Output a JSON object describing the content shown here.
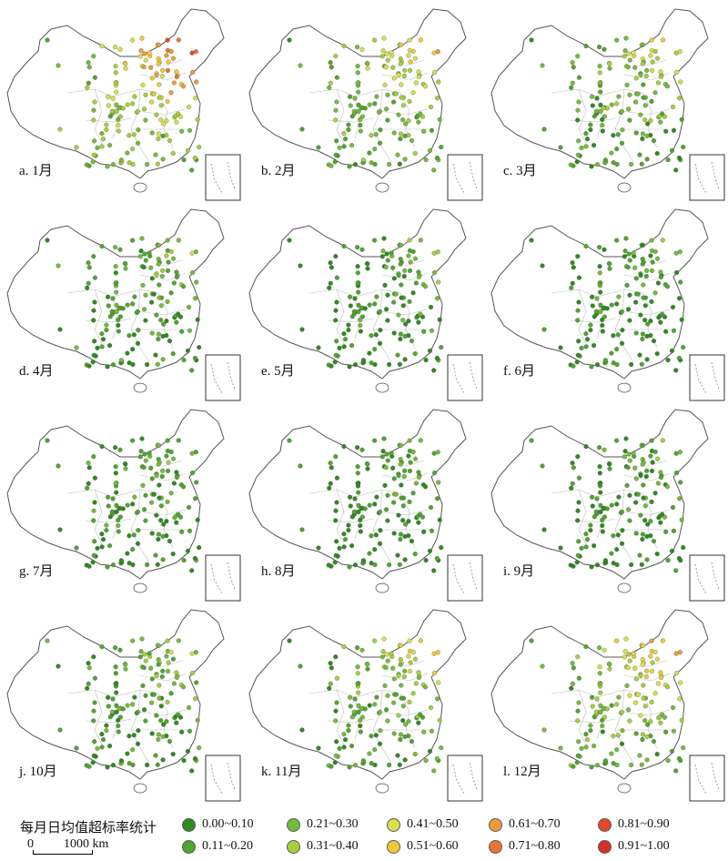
{
  "panels": [
    {
      "label": "a. 1月",
      "level": 0.78
    },
    {
      "label": "b. 2月",
      "level": 0.55
    },
    {
      "label": "c. 3月",
      "level": 0.45
    },
    {
      "label": "d. 4月",
      "level": 0.28
    },
    {
      "label": "e. 5月",
      "level": 0.22
    },
    {
      "label": "f. 6月",
      "level": 0.2
    },
    {
      "label": "g. 7月",
      "level": 0.24
    },
    {
      "label": "h. 8月",
      "level": 0.17
    },
    {
      "label": "i. 9月",
      "level": 0.2
    },
    {
      "label": "j. 10月",
      "level": 0.3
    },
    {
      "label": "k. 11月",
      "level": 0.45
    },
    {
      "label": "l. 12月",
      "level": 0.6
    }
  ],
  "legend": {
    "title": "每月日均值超标率统计",
    "classes": [
      {
        "label": "0.00~0.10",
        "color": "#2e8b1e"
      },
      {
        "label": "0.11~0.20",
        "color": "#4ea62e"
      },
      {
        "label": "0.21~0.30",
        "color": "#74bb3a"
      },
      {
        "label": "0.31~0.40",
        "color": "#a6cf3e"
      },
      {
        "label": "0.41~0.50",
        "color": "#d6e04a"
      },
      {
        "label": "0.51~0.60",
        "color": "#efc93a"
      },
      {
        "label": "0.61~0.70",
        "color": "#f19a3a"
      },
      {
        "label": "0.71~0.80",
        "color": "#ec7434"
      },
      {
        "label": "0.81~0.90",
        "color": "#e4462e"
      },
      {
        "label": "0.91~1.00",
        "color": "#d83026"
      }
    ]
  },
  "scale": {
    "zero": "0",
    "end": "1000 km"
  }
}
